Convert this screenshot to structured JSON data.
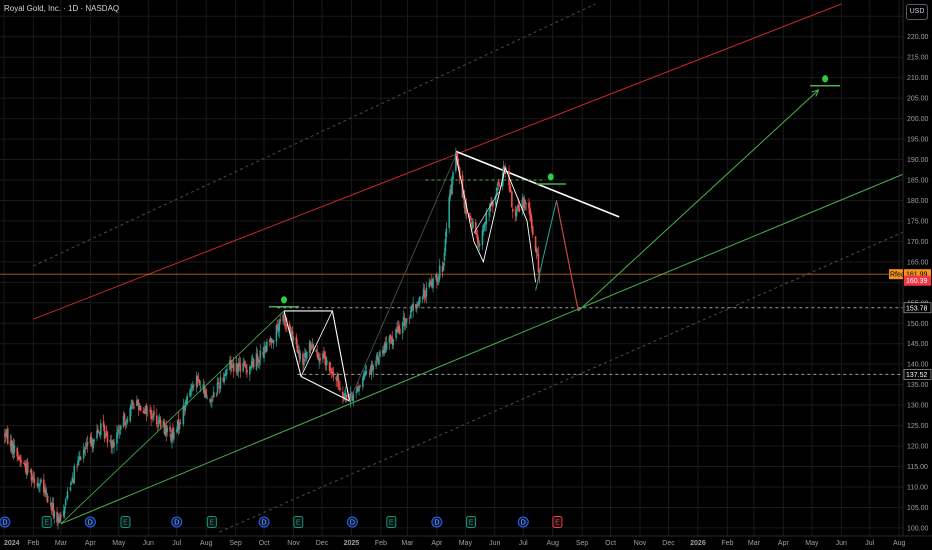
{
  "header": {
    "title": "Royal Gold, Inc. · 1D · NASDAQ",
    "currency_button": "USD"
  },
  "colors": {
    "background": "#000000",
    "bull": "#26a69a",
    "bear": "#ef5350",
    "trend_green": "#4caf50",
    "trend_red": "#c62828",
    "white": "#ffffff",
    "grid": "#1a1a1a",
    "last_price": "#f7931a",
    "earnings_badge": "#f23645",
    "dividend_badge": "#2962ff",
    "event_green": "#089981"
  },
  "chart_data": {
    "type": "candlestick",
    "symbol": "Royal Gold, Inc.",
    "interval": "1D",
    "exchange": "NASDAQ",
    "currency": "USD",
    "ylim": [
      99,
      228
    ],
    "y_ticks": [
      100,
      105,
      110,
      115,
      120,
      125,
      130,
      135,
      140,
      145,
      150,
      155,
      160,
      165,
      170,
      175,
      180,
      185,
      190,
      195,
      200,
      205,
      210,
      215,
      220,
      225
    ],
    "x_ticks": [
      "2024",
      "Feb",
      "Mar",
      "Apr",
      "May",
      "Jun",
      "Jul",
      "Aug",
      "Sep",
      "Oct",
      "Nov",
      "Dec",
      "2025",
      "Feb",
      "Mar",
      "Apr",
      "May",
      "Jun",
      "Jul",
      "Aug",
      "Sep",
      "Oct",
      "Nov",
      "Dec",
      "2026",
      "Feb",
      "Mar",
      "Apr",
      "May",
      "Jun",
      "Jul",
      "Aug"
    ],
    "price_anchors": [
      {
        "date": "2024-01-02",
        "price": 123
      },
      {
        "date": "2024-01-20",
        "price": 116
      },
      {
        "date": "2024-02-10",
        "price": 110
      },
      {
        "date": "2024-02-28",
        "price": 101
      },
      {
        "date": "2024-03-12",
        "price": 112
      },
      {
        "date": "2024-03-25",
        "price": 119
      },
      {
        "date": "2024-04-12",
        "price": 124
      },
      {
        "date": "2024-04-25",
        "price": 121
      },
      {
        "date": "2024-05-18",
        "price": 131
      },
      {
        "date": "2024-06-08",
        "price": 127
      },
      {
        "date": "2024-06-28",
        "price": 122
      },
      {
        "date": "2024-07-20",
        "price": 137
      },
      {
        "date": "2024-08-05",
        "price": 131
      },
      {
        "date": "2024-08-25",
        "price": 140
      },
      {
        "date": "2024-09-12",
        "price": 139
      },
      {
        "date": "2024-10-01",
        "price": 143
      },
      {
        "date": "2024-10-21",
        "price": 151
      },
      {
        "date": "2024-10-28",
        "price": 148
      },
      {
        "date": "2024-11-10",
        "price": 140
      },
      {
        "date": "2024-11-20",
        "price": 145
      },
      {
        "date": "2024-12-05",
        "price": 140
      },
      {
        "date": "2024-12-30",
        "price": 131
      },
      {
        "date": "2025-01-15",
        "price": 137
      },
      {
        "date": "2025-02-05",
        "price": 144
      },
      {
        "date": "2025-02-25",
        "price": 150
      },
      {
        "date": "2025-03-15",
        "price": 156
      },
      {
        "date": "2025-04-08",
        "price": 164
      },
      {
        "date": "2025-04-14",
        "price": 180
      },
      {
        "date": "2025-04-21",
        "price": 191
      },
      {
        "date": "2025-05-01",
        "price": 178
      },
      {
        "date": "2025-05-15",
        "price": 170
      },
      {
        "date": "2025-05-30",
        "price": 180
      },
      {
        "date": "2025-06-12",
        "price": 188
      },
      {
        "date": "2025-06-22",
        "price": 176
      },
      {
        "date": "2025-07-05",
        "price": 181
      },
      {
        "date": "2025-07-14",
        "price": 168
      },
      {
        "date": "2025-07-20",
        "price": 160
      }
    ],
    "drawn_lines": [
      {
        "name": "support-trendline",
        "from": [
          "2024-03-01",
          101
        ],
        "to": [
          "2026-09-01",
          189
        ]
      },
      {
        "name": "red-channel-line",
        "from": [
          "2024-02-01",
          151
        ],
        "to": [
          "2026-06-01",
          228
        ]
      },
      {
        "name": "upper-dashed-channel",
        "from": [
          "2024-02-01",
          164
        ],
        "to": [
          "2025-09-15",
          228
        ]
      },
      {
        "name": "lower-dashed-channel",
        "from": [
          "2024-08-15",
          99
        ],
        "to": [
          "2026-09-01",
          175
        ]
      },
      {
        "name": "descending-resistance",
        "from": [
          "2025-04-21",
          192
        ],
        "to": [
          "2025-10-10",
          176
        ]
      },
      {
        "name": "projected-drop",
        "from": [
          "2025-08-05",
          180
        ],
        "to": [
          "2025-08-28",
          153
        ]
      },
      {
        "name": "projected-rally",
        "from": [
          "2025-08-28",
          153
        ],
        "to": [
          "2026-05-08",
          207
        ]
      }
    ],
    "horizontal_levels": [
      {
        "name": "recent-high-level",
        "price": 185,
        "from": "2025-03-20",
        "to": "2025-07-25"
      },
      {
        "name": "level-153-78",
        "price": 153.78,
        "from": "2024-10-15",
        "to": "2026-09-01"
      },
      {
        "name": "level-137-52",
        "price": 137.52,
        "from": "2024-11-05",
        "to": "2026-09-01"
      }
    ],
    "price_labels": [
      {
        "name": "last-price-tag",
        "text": "161.99",
        "prefix": "Rfea",
        "price": 161.99
      },
      {
        "name": "close-price-tag",
        "text": "160.39",
        "price": 160.39
      },
      {
        "name": "level-tag-153",
        "text": "153.78",
        "price": 153.78
      },
      {
        "name": "level-tag-137",
        "text": "137.52",
        "price": 137.52
      }
    ],
    "target_markers": [
      {
        "name": "target-2024-oct",
        "date": "2024-10-22",
        "price": 155
      },
      {
        "name": "target-2025-jul",
        "date": "2025-07-30",
        "price": 185
      },
      {
        "name": "target-2026-may",
        "date": "2026-05-15",
        "price": 209
      }
    ],
    "events": [
      {
        "type": "D",
        "date": "2024-01-02"
      },
      {
        "type": "E",
        "date": "2024-02-15"
      },
      {
        "type": "D",
        "date": "2024-04-01"
      },
      {
        "type": "E",
        "date": "2024-05-08"
      },
      {
        "type": "D",
        "date": "2024-07-01"
      },
      {
        "type": "E",
        "date": "2024-08-07"
      },
      {
        "type": "D",
        "date": "2024-10-01"
      },
      {
        "type": "E",
        "date": "2024-11-06"
      },
      {
        "type": "D",
        "date": "2025-01-02"
      },
      {
        "type": "E",
        "date": "2025-02-12"
      },
      {
        "type": "D",
        "date": "2025-04-01"
      },
      {
        "type": "E",
        "date": "2025-05-07"
      },
      {
        "type": "D",
        "date": "2025-07-01"
      },
      {
        "type": "E",
        "date": "2025-08-06"
      }
    ]
  }
}
